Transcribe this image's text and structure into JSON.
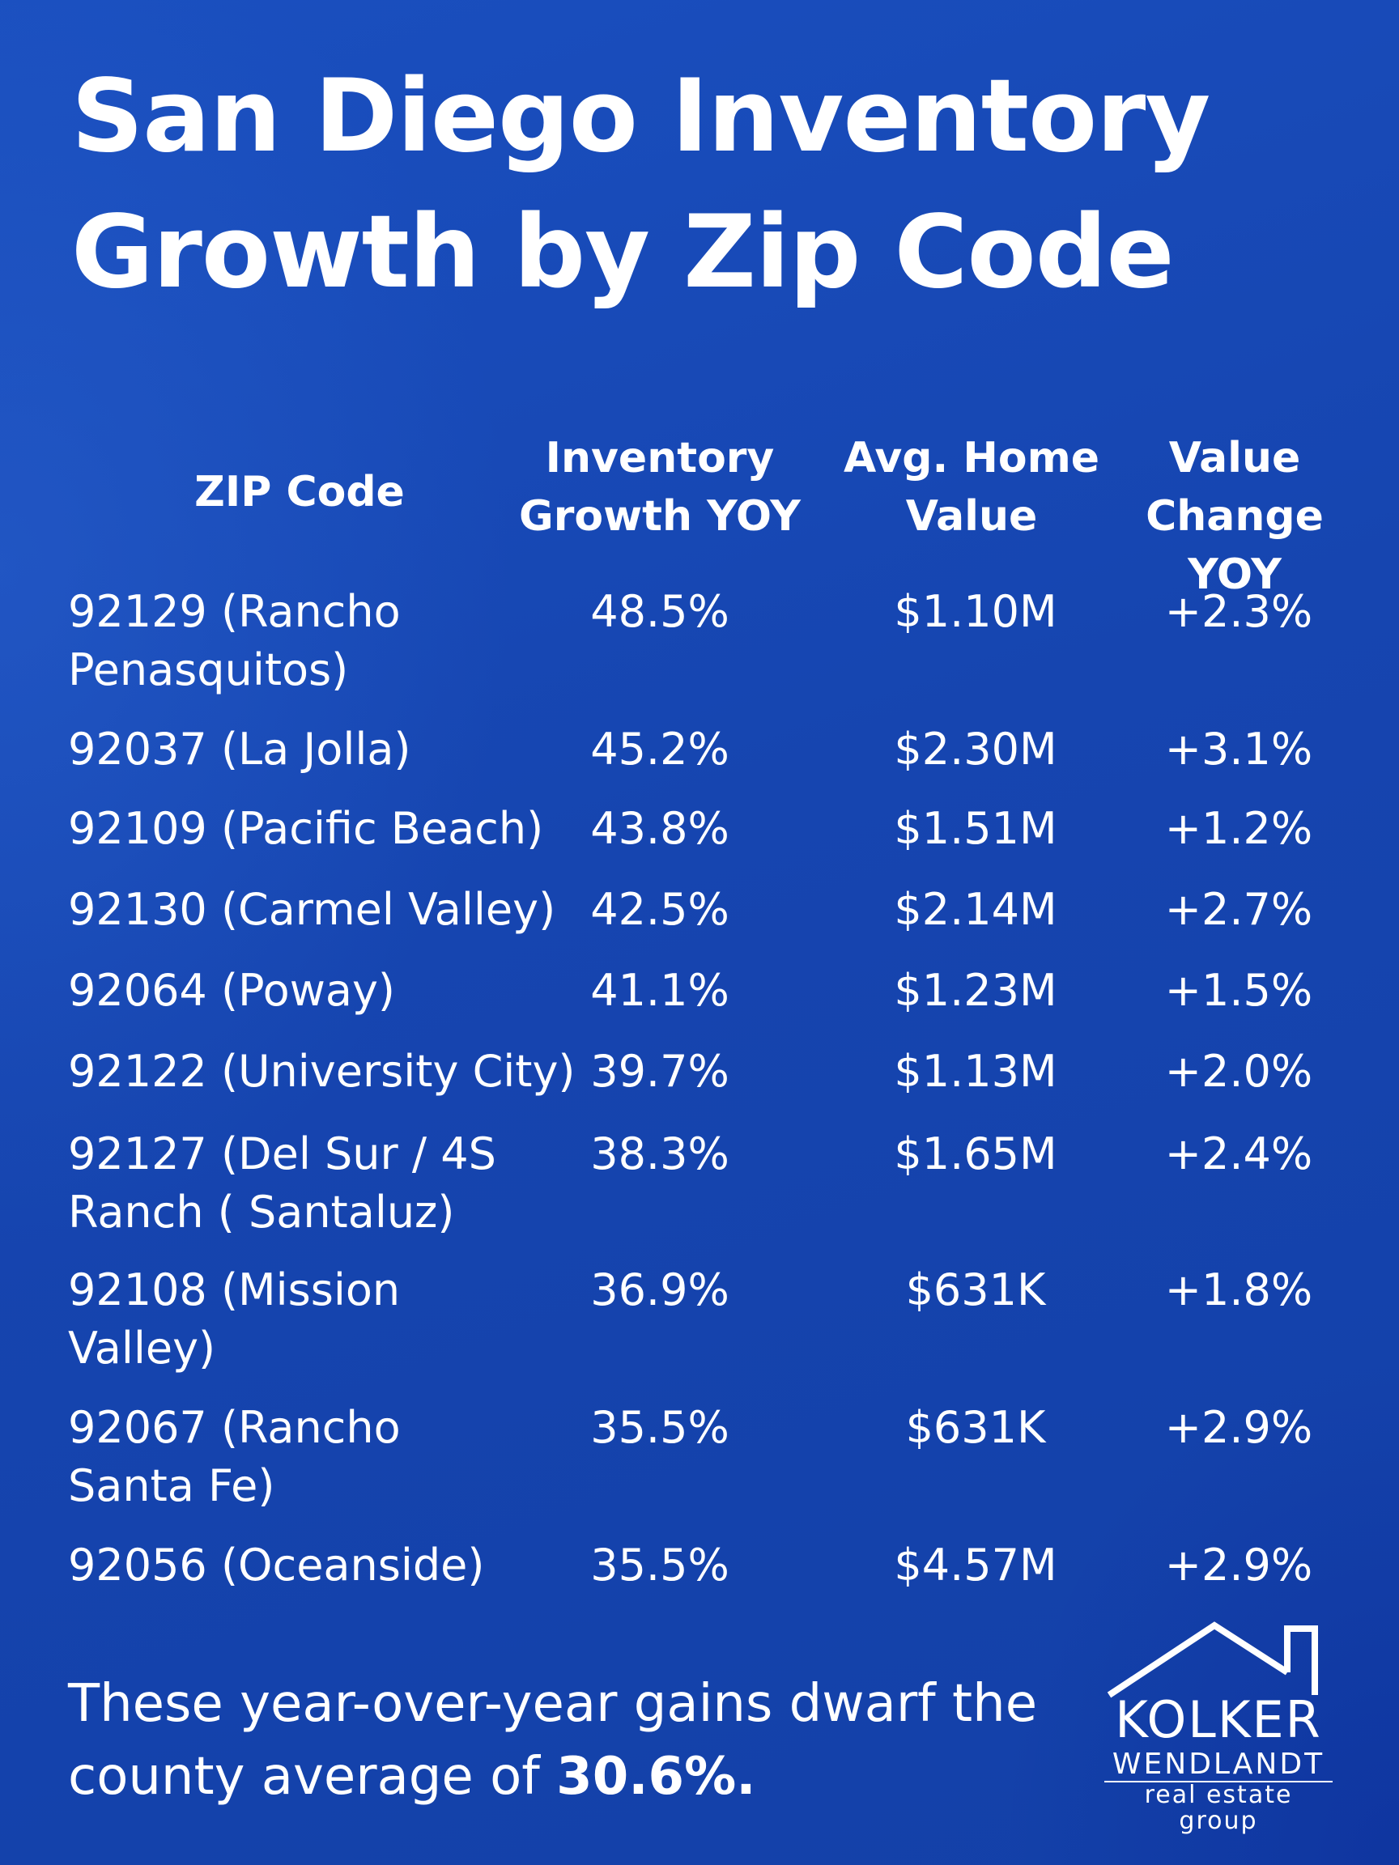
{
  "title": {
    "line1": "San Diego Inventory",
    "line2": "Growth by Zip Code"
  },
  "table": {
    "headers": {
      "zip": "ZIP Code",
      "inventory_line1": "Inventory",
      "inventory_line2": "Growth YOY",
      "value_line1": "Avg. Home",
      "value_line2": "Value",
      "change_line1": "Value",
      "change_line2": "Change YOY"
    },
    "rows": [
      {
        "zip_line1": "92129 (Rancho",
        "zip_line2": "Penasquitos)",
        "inventory": "48.5%",
        "value": "$1.10M",
        "change": "+2.3%"
      },
      {
        "zip_line1": "92037 (La Jolla)",
        "zip_line2": "",
        "inventory": "45.2%",
        "value": "$2.30M",
        "change": "+3.1%"
      },
      {
        "zip_line1": "92109 (Pacific Beach)",
        "zip_line2": "",
        "inventory": "43.8%",
        "value": "$1.51M",
        "change": "+1.2%"
      },
      {
        "zip_line1": "92130 (Carmel Valley)",
        "zip_line2": "",
        "inventory": "42.5%",
        "value": "$2.14M",
        "change": "+2.7%"
      },
      {
        "zip_line1": "92064 (Poway)",
        "zip_line2": "",
        "inventory": "41.1%",
        "value": "$1.23M",
        "change": "+1.5%"
      },
      {
        "zip_line1": "92122 (University City)",
        "zip_line2": "",
        "inventory": "39.7%",
        "value": "$1.13M",
        "change": "+2.0%"
      },
      {
        "zip_line1": "92127 (Del Sur / 4S",
        "zip_line2": "Ranch ( Santaluz)",
        "inventory": "38.3%",
        "value": "$1.65M",
        "change": "+2.4%"
      },
      {
        "zip_line1": "92108 (Mission",
        "zip_line2": "Valley)",
        "inventory": "36.9%",
        "value": "$631K",
        "change": "+1.8%"
      },
      {
        "zip_line1": "92067 (Rancho",
        "zip_line2": "Santa Fe)",
        "inventory": "35.5%",
        "value": "$631K",
        "change": "+2.9%"
      },
      {
        "zip_line1": "92056 (Oceanside)",
        "zip_line2": "",
        "inventory": "35.5%",
        "value": "$4.57M",
        "change": "+2.9%"
      }
    ]
  },
  "footer": {
    "line1": "These year-over-year gains dwarf the",
    "line2_prefix": "county average of ",
    "line2_bold": "30.6%."
  },
  "logo": {
    "icon": "house-roof-icon",
    "line1": "KOLKER",
    "line2": "WENDLANDT",
    "line3": "real estate group"
  }
}
